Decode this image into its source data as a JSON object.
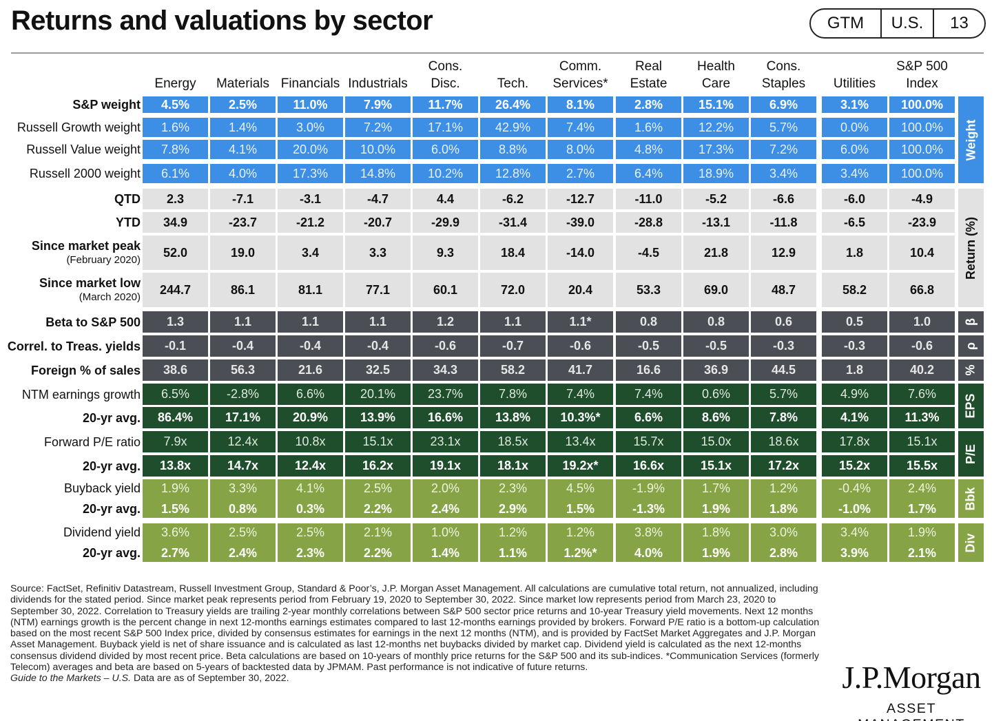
{
  "header": {
    "title": "Returns and valuations by sector",
    "tags": [
      "GTM",
      "U.S.",
      "13"
    ]
  },
  "chart_data": {
    "type": "table",
    "columns": [
      [
        "Energy"
      ],
      [
        "Materials"
      ],
      [
        "Financials"
      ],
      [
        "Industrials"
      ],
      [
        "Cons.",
        "Disc."
      ],
      [
        "Tech."
      ],
      [
        "Comm.",
        "Services*"
      ],
      [
        "Real",
        "Estate"
      ],
      [
        "Health",
        "Care"
      ],
      [
        "Cons.",
        "Staples"
      ],
      [
        "Utilities"
      ],
      [
        "S&P 500",
        "Index"
      ]
    ],
    "rows": [
      {
        "label": "S&P weight",
        "group": "weight",
        "bold": true,
        "values": [
          "4.5%",
          "2.5%",
          "11.0%",
          "7.9%",
          "11.7%",
          "26.4%",
          "8.1%",
          "2.8%",
          "15.1%",
          "6.9%",
          "3.1%",
          "100.0%"
        ]
      },
      {
        "label": "Russell Growth weight",
        "group": "weight",
        "bold": false,
        "values": [
          "1.6%",
          "1.4%",
          "3.0%",
          "7.2%",
          "17.1%",
          "42.9%",
          "7.4%",
          "1.6%",
          "12.2%",
          "5.7%",
          "0.0%",
          "100.0%"
        ]
      },
      {
        "label": "Russell Value weight",
        "group": "weight",
        "bold": false,
        "values": [
          "7.8%",
          "4.1%",
          "20.0%",
          "10.0%",
          "6.0%",
          "8.8%",
          "8.0%",
          "4.8%",
          "17.3%",
          "7.2%",
          "6.0%",
          "100.0%"
        ]
      },
      {
        "label": "Russell 2000 weight",
        "group": "weight",
        "bold": false,
        "values": [
          "6.1%",
          "4.0%",
          "17.3%",
          "14.8%",
          "10.2%",
          "12.8%",
          "2.7%",
          "6.4%",
          "18.9%",
          "3.4%",
          "3.4%",
          "100.0%"
        ]
      },
      {
        "label": "QTD",
        "group": "return",
        "bold": true,
        "values": [
          "2.3",
          "-7.1",
          "-3.1",
          "-4.7",
          "4.4",
          "-6.2",
          "-12.7",
          "-11.0",
          "-5.2",
          "-6.6",
          "-6.0",
          "-4.9"
        ]
      },
      {
        "label": "YTD",
        "group": "return",
        "bold": true,
        "values": [
          "34.9",
          "-23.7",
          "-21.2",
          "-20.7",
          "-29.9",
          "-31.4",
          "-39.0",
          "-28.8",
          "-13.1",
          "-11.8",
          "-6.5",
          "-23.9"
        ]
      },
      {
        "label": "Since market peak",
        "sublabel": "(February 2020)",
        "group": "return",
        "bold": true,
        "values": [
          "52.0",
          "19.0",
          "3.4",
          "3.3",
          "9.3",
          "18.4",
          "-14.0",
          "-4.5",
          "21.8",
          "12.9",
          "1.8",
          "10.4"
        ]
      },
      {
        "label": "Since market low",
        "sublabel": "(March 2020)",
        "group": "return",
        "bold": true,
        "values": [
          "244.7",
          "86.1",
          "81.1",
          "77.1",
          "60.1",
          "72.0",
          "20.4",
          "53.3",
          "69.0",
          "48.7",
          "58.2",
          "66.8"
        ]
      },
      {
        "label": "Beta to S&P 500",
        "group": "beta",
        "bold": true,
        "values": [
          "1.3",
          "1.1",
          "1.1",
          "1.1",
          "1.2",
          "1.1",
          "1.1*",
          "0.8",
          "0.8",
          "0.6",
          "0.5",
          "1.0"
        ]
      },
      {
        "label": "Correl. to Treas. yields",
        "group": "rho",
        "bold": true,
        "values": [
          "-0.1",
          "-0.4",
          "-0.4",
          "-0.4",
          "-0.6",
          "-0.7",
          "-0.6",
          "-0.5",
          "-0.5",
          "-0.3",
          "-0.3",
          "-0.6"
        ]
      },
      {
        "label": "Foreign % of sales",
        "group": "pct",
        "bold": true,
        "values": [
          "38.6",
          "56.3",
          "21.6",
          "32.5",
          "34.3",
          "58.2",
          "41.7",
          "16.6",
          "36.9",
          "44.5",
          "1.8",
          "40.2"
        ]
      },
      {
        "label": "NTM earnings growth",
        "group": "eps",
        "bold": false,
        "values": [
          "6.5%",
          "-2.8%",
          "6.6%",
          "20.1%",
          "23.7%",
          "7.8%",
          "7.4%",
          "7.4%",
          "0.6%",
          "5.7%",
          "4.9%",
          "7.6%"
        ]
      },
      {
        "label": "20-yr avg.",
        "group": "eps",
        "bold": true,
        "values": [
          "86.4%",
          "17.1%",
          "20.9%",
          "13.9%",
          "16.6%",
          "13.8%",
          "10.3%*",
          "6.6%",
          "8.6%",
          "7.8%",
          "4.1%",
          "11.3%"
        ]
      },
      {
        "label": "Forward P/E ratio",
        "group": "pe",
        "bold": false,
        "values": [
          "7.9x",
          "12.4x",
          "10.8x",
          "15.1x",
          "23.1x",
          "18.5x",
          "13.4x",
          "15.7x",
          "15.0x",
          "18.6x",
          "17.8x",
          "15.1x"
        ]
      },
      {
        "label": "20-yr avg.",
        "group": "pe",
        "bold": true,
        "values": [
          "13.8x",
          "14.7x",
          "12.4x",
          "16.2x",
          "19.1x",
          "18.1x",
          "19.2x*",
          "16.6x",
          "15.1x",
          "17.2x",
          "15.2x",
          "15.5x"
        ]
      },
      {
        "label": "Buyback yield",
        "group": "bbk",
        "bold": false,
        "values": [
          "1.9%",
          "3.3%",
          "4.1%",
          "2.5%",
          "2.0%",
          "2.3%",
          "4.5%",
          "-1.9%",
          "1.7%",
          "1.2%",
          "-0.4%",
          "2.4%"
        ]
      },
      {
        "label": "20-yr avg.",
        "group": "bbk",
        "bold": true,
        "values": [
          "1.5%",
          "0.8%",
          "0.3%",
          "2.2%",
          "2.4%",
          "2.9%",
          "1.5%",
          "-1.3%",
          "1.9%",
          "1.8%",
          "-1.0%",
          "1.7%"
        ]
      },
      {
        "label": "Dividend yield",
        "group": "div",
        "bold": false,
        "values": [
          "3.6%",
          "2.5%",
          "2.5%",
          "2.1%",
          "1.0%",
          "1.2%",
          "1.2%",
          "3.8%",
          "1.8%",
          "3.0%",
          "3.4%",
          "1.9%"
        ]
      },
      {
        "label": "20-yr avg.",
        "group": "div",
        "bold": true,
        "values": [
          "2.7%",
          "2.4%",
          "2.3%",
          "2.2%",
          "1.4%",
          "1.1%",
          "1.2%*",
          "4.0%",
          "1.9%",
          "2.8%",
          "3.9%",
          "2.1%"
        ]
      }
    ],
    "side_labels": {
      "weight": "Weight",
      "return": "Return (%)",
      "beta": "β",
      "rho": "ρ",
      "pct": "%",
      "eps": "EPS",
      "pe": "P/E",
      "bbk": "Bbk",
      "div": "Div"
    },
    "group_colors": {
      "weight": "#3d8fe6",
      "return": "#e2e2e2",
      "beta": "#4b4f55",
      "rho": "#4b4f55",
      "pct": "#4b4f55",
      "eps": "#1f4e2c",
      "pe": "#1f4e2c",
      "bbk": "#86a446",
      "div": "#86a446"
    }
  },
  "footer": {
    "source": "Source: FactSet, Refinitiv Datastream, Russell Investment Group, Standard & Poor’s, J.P. Morgan Asset Management. All calculations are cumulative total return, not annualized, including dividends for the stated period. Since market peak represents period from February 19, 2020 to September 30, 2022. Since market low represents period from March 23, 2020 to September 30, 2022. Correlation to Treasury yields are trailing 2-year monthly correlations between S&P 500 sector price returns and 10-year Treasury yield movements. Next 12 months (NTM) earnings growth is the percent change in next 12-months earnings estimates compared to last 12-months earnings provided by brokers. Forward P/E ratio is a bottom-up calculation based on the most recent S&P 500 Index price, divided by consensus estimates for earnings in the next 12 months (NTM), and is provided by FactSet Market Aggregates and J.P. Morgan Asset Management. Buyback yield is net of share issuance and is calculated as last 12-months net buybacks divided by market cap. Dividend yield is calculated as the next 12-months consensus dividend divided by most recent price. Beta calculations are based on 10-years of monthly price returns for the S&P 500 and its sub-indices. *Communication Services (formerly Telecom) averages and beta are based on 5-years of backtested data by JPMAM. Past performance is not indicative of future returns.",
    "guide_italic": "Guide to the Markets – U.S.",
    "guide_rest": " Data are as of September 30, 2022.",
    "logo_main": "J.P.Morgan",
    "logo_sub": "ASSET MANAGEMENT"
  }
}
